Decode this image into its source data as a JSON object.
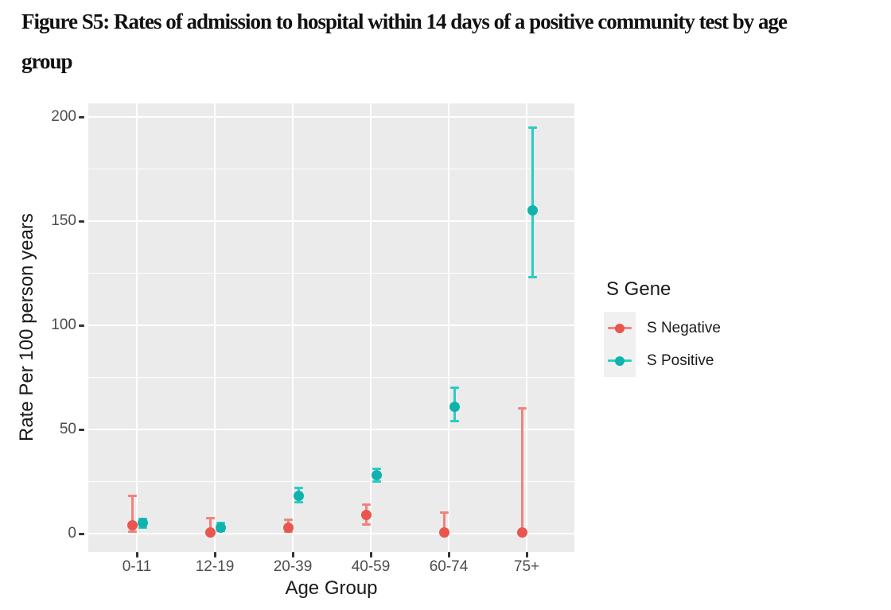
{
  "figure_caption": {
    "lines": [
      "Figure S5:  Rates of admission to hospital within 14 days of a positive community test by age",
      "group"
    ]
  },
  "chart_data": {
    "type": "scatter",
    "subtype": "pointrange-with-error-bars",
    "title": "Figure S5: Rates of admission to hospital within 14 days of a positive community test by age group",
    "categories": [
      "0-11",
      "12-19",
      "20-39",
      "40-59",
      "60-74",
      "75+"
    ],
    "xlabel": "Age Group",
    "ylabel": "Rate Per 100 person years",
    "ylim": [
      0,
      200
    ],
    "yticks": [
      0,
      50,
      100,
      150,
      200
    ],
    "yticks_minor": [
      25,
      75,
      125,
      175
    ],
    "grid": "white major and minor horizontal lines, white vertical line per category, on gray panel",
    "legend": {
      "title": "S Gene",
      "position": "right"
    },
    "series": [
      {
        "name": "S Negative",
        "point_color": "#E8564E",
        "line_color": "#F0837C",
        "points": [
          {
            "category": "0-11",
            "y": 4,
            "lo": 1,
            "hi": 18
          },
          {
            "category": "12-19",
            "y": 0.4,
            "lo": 0,
            "hi": 7.5
          },
          {
            "category": "20-39",
            "y": 3,
            "lo": 1,
            "hi": 6.5
          },
          {
            "category": "40-59",
            "y": 9,
            "lo": 4.5,
            "hi": 14
          },
          {
            "category": "60-74",
            "y": 0.4,
            "lo": 0,
            "hi": 10
          },
          {
            "category": "75+",
            "y": 0.4,
            "lo": 0,
            "hi": 60
          }
        ]
      },
      {
        "name": "S Positive",
        "point_color": "#0FB3AC",
        "line_color": "#2ACCC3",
        "points": [
          {
            "category": "0-11",
            "y": 5,
            "lo": 3,
            "hi": 7
          },
          {
            "category": "12-19",
            "y": 3,
            "lo": 1.5,
            "hi": 5
          },
          {
            "category": "20-39",
            "y": 18,
            "lo": 15,
            "hi": 22
          },
          {
            "category": "40-59",
            "y": 28,
            "lo": 25,
            "hi": 31
          },
          {
            "category": "60-74",
            "y": 61,
            "lo": 54,
            "hi": 70
          },
          {
            "category": "75+",
            "y": 155,
            "lo": 123,
            "hi": 195
          }
        ]
      }
    ]
  },
  "colors": {
    "panel_bg": "#EBEBEB",
    "gridline": "#FFFFFF",
    "tick_text": "#4D4D4D",
    "axis_title_text": "#1A1A1A",
    "caption_text": "#111111",
    "legend_key_bg": "#F0F0F0"
  }
}
